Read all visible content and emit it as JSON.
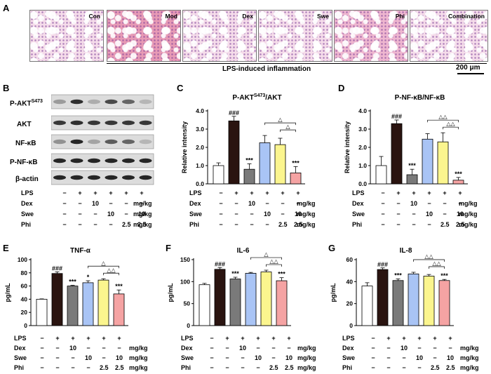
{
  "panel_labels": {
    "A": "A",
    "B": "B",
    "C": "C",
    "D": "D",
    "E": "E",
    "F": "F",
    "G": "G"
  },
  "histology": {
    "labels": [
      "Con",
      "Mod",
      "Dex",
      "Swe",
      "Phi",
      "Combination"
    ],
    "bracket_label": "LPS-induced inflammation",
    "scale_bar": "200 μm"
  },
  "blot": {
    "labels": [
      "P-AKT",
      "AKT",
      "NF-κB",
      "P-NF-κB",
      "β-actin"
    ],
    "pakt_sup": "S473",
    "intensities": {
      "P-AKT": [
        0.25,
        0.85,
        0.15,
        0.7,
        0.55,
        0.1
      ],
      "AKT": [
        0.8,
        0.85,
        0.8,
        0.8,
        0.8,
        0.8
      ],
      "NF-κB": [
        0.3,
        0.9,
        0.2,
        0.6,
        0.55,
        0.1
      ],
      "P-NF-κB": [
        0.9,
        0.9,
        0.9,
        0.9,
        0.9,
        0.9
      ],
      "β-actin": [
        0.9,
        0.9,
        0.9,
        0.9,
        0.9,
        0.9
      ]
    }
  },
  "treatment_table": {
    "row_labels": [
      "LPS",
      "Dex",
      "Swe",
      "Phi"
    ],
    "unit": "mg/kg",
    "rows": [
      [
        "−",
        "+",
        "+",
        "+",
        "+",
        "+"
      ],
      [
        "−",
        "−",
        "10",
        "−",
        "−",
        "−"
      ],
      [
        "−",
        "−",
        "−",
        "10",
        "−",
        "10"
      ],
      [
        "−",
        "−",
        "−",
        "−",
        "2.5",
        "2.5"
      ]
    ]
  },
  "bar_colors": [
    "#ffffff",
    "#2a1410",
    "#7a7a7a",
    "#a9c4f5",
    "#fbf58e",
    "#f5a3a3"
  ],
  "chart_data": [
    {
      "id": "C",
      "type": "bar",
      "title": "P-AKT",
      "title_sup": "S473",
      "title_suffix": "/AKT",
      "ylabel": "Relative intensity",
      "ylim": [
        0,
        4.0
      ],
      "yticks": [
        "0.0",
        "1.0",
        "2.0",
        "3.0",
        "4.0"
      ],
      "values": [
        1.0,
        3.45,
        0.8,
        2.25,
        2.15,
        0.6
      ],
      "errors": [
        0.15,
        0.25,
        0.3,
        0.4,
        0.35,
        0.35
      ],
      "annotations": [
        "",
        "###",
        "***",
        "",
        "",
        "***"
      ],
      "brackets": [
        {
          "from": 3,
          "to": 5,
          "label": "△"
        },
        {
          "from": 4,
          "to": 5,
          "label": "△"
        }
      ]
    },
    {
      "id": "D",
      "type": "bar",
      "title": "P-NF-κB/NF-κB",
      "ylabel": "Relative intensity",
      "ylim": [
        0,
        4.0
      ],
      "yticks": [
        "0.0",
        "1.0",
        "2.0",
        "3.0",
        "4.0"
      ],
      "values": [
        1.0,
        3.3,
        0.5,
        2.45,
        2.3,
        0.2
      ],
      "errors": [
        0.5,
        0.2,
        0.3,
        0.3,
        0.5,
        0.15
      ],
      "annotations": [
        "",
        "###",
        "***",
        "",
        "",
        "***"
      ],
      "brackets": [
        {
          "from": 3,
          "to": 5,
          "label": "△△"
        },
        {
          "from": 4,
          "to": 5,
          "label": "△△"
        }
      ]
    },
    {
      "id": "E",
      "type": "bar",
      "title": "TNF-α",
      "ylabel": "pg/mL",
      "ylim": [
        0,
        100
      ],
      "yticks": [
        "0",
        "20",
        "40",
        "60",
        "80",
        "100"
      ],
      "values": [
        40,
        79,
        60,
        65,
        69,
        48
      ],
      "errors": [
        0.5,
        2.5,
        1,
        3,
        2,
        6
      ],
      "annotations": [
        "",
        "###",
        "***",
        "*",
        "",
        "***"
      ],
      "brackets": [
        {
          "from": 3,
          "to": 5,
          "label": "△"
        },
        {
          "from": 4,
          "to": 5,
          "label": "△△"
        }
      ]
    },
    {
      "id": "F",
      "type": "bar",
      "title": "IL-6",
      "ylabel": "pg/mL",
      "ylim": [
        0,
        150
      ],
      "yticks": [
        "0",
        "50",
        "100",
        "150"
      ],
      "values": [
        93,
        128,
        106,
        119,
        122,
        102
      ],
      "errors": [
        3,
        4,
        4,
        2,
        4,
        7
      ],
      "annotations": [
        "",
        "###",
        "***",
        "",
        "",
        "***"
      ],
      "brackets": [
        {
          "from": 3,
          "to": 5,
          "label": "△"
        },
        {
          "from": 4,
          "to": 5,
          "label": "△△"
        }
      ]
    },
    {
      "id": "G",
      "type": "bar",
      "title": "IL-8",
      "ylabel": "pg/mL",
      "ylim": [
        0,
        60
      ],
      "yticks": [
        "0",
        "20",
        "40",
        "60"
      ],
      "values": [
        36,
        51,
        41,
        47,
        45,
        41
      ],
      "errors": [
        3,
        1.5,
        1.5,
        1.5,
        1.5,
        1
      ],
      "annotations": [
        "",
        "###",
        "***",
        "",
        "",
        "***"
      ],
      "brackets": [
        {
          "from": 3,
          "to": 5,
          "label": "△△"
        },
        {
          "from": 4,
          "to": 5,
          "label": "△△"
        }
      ]
    }
  ]
}
